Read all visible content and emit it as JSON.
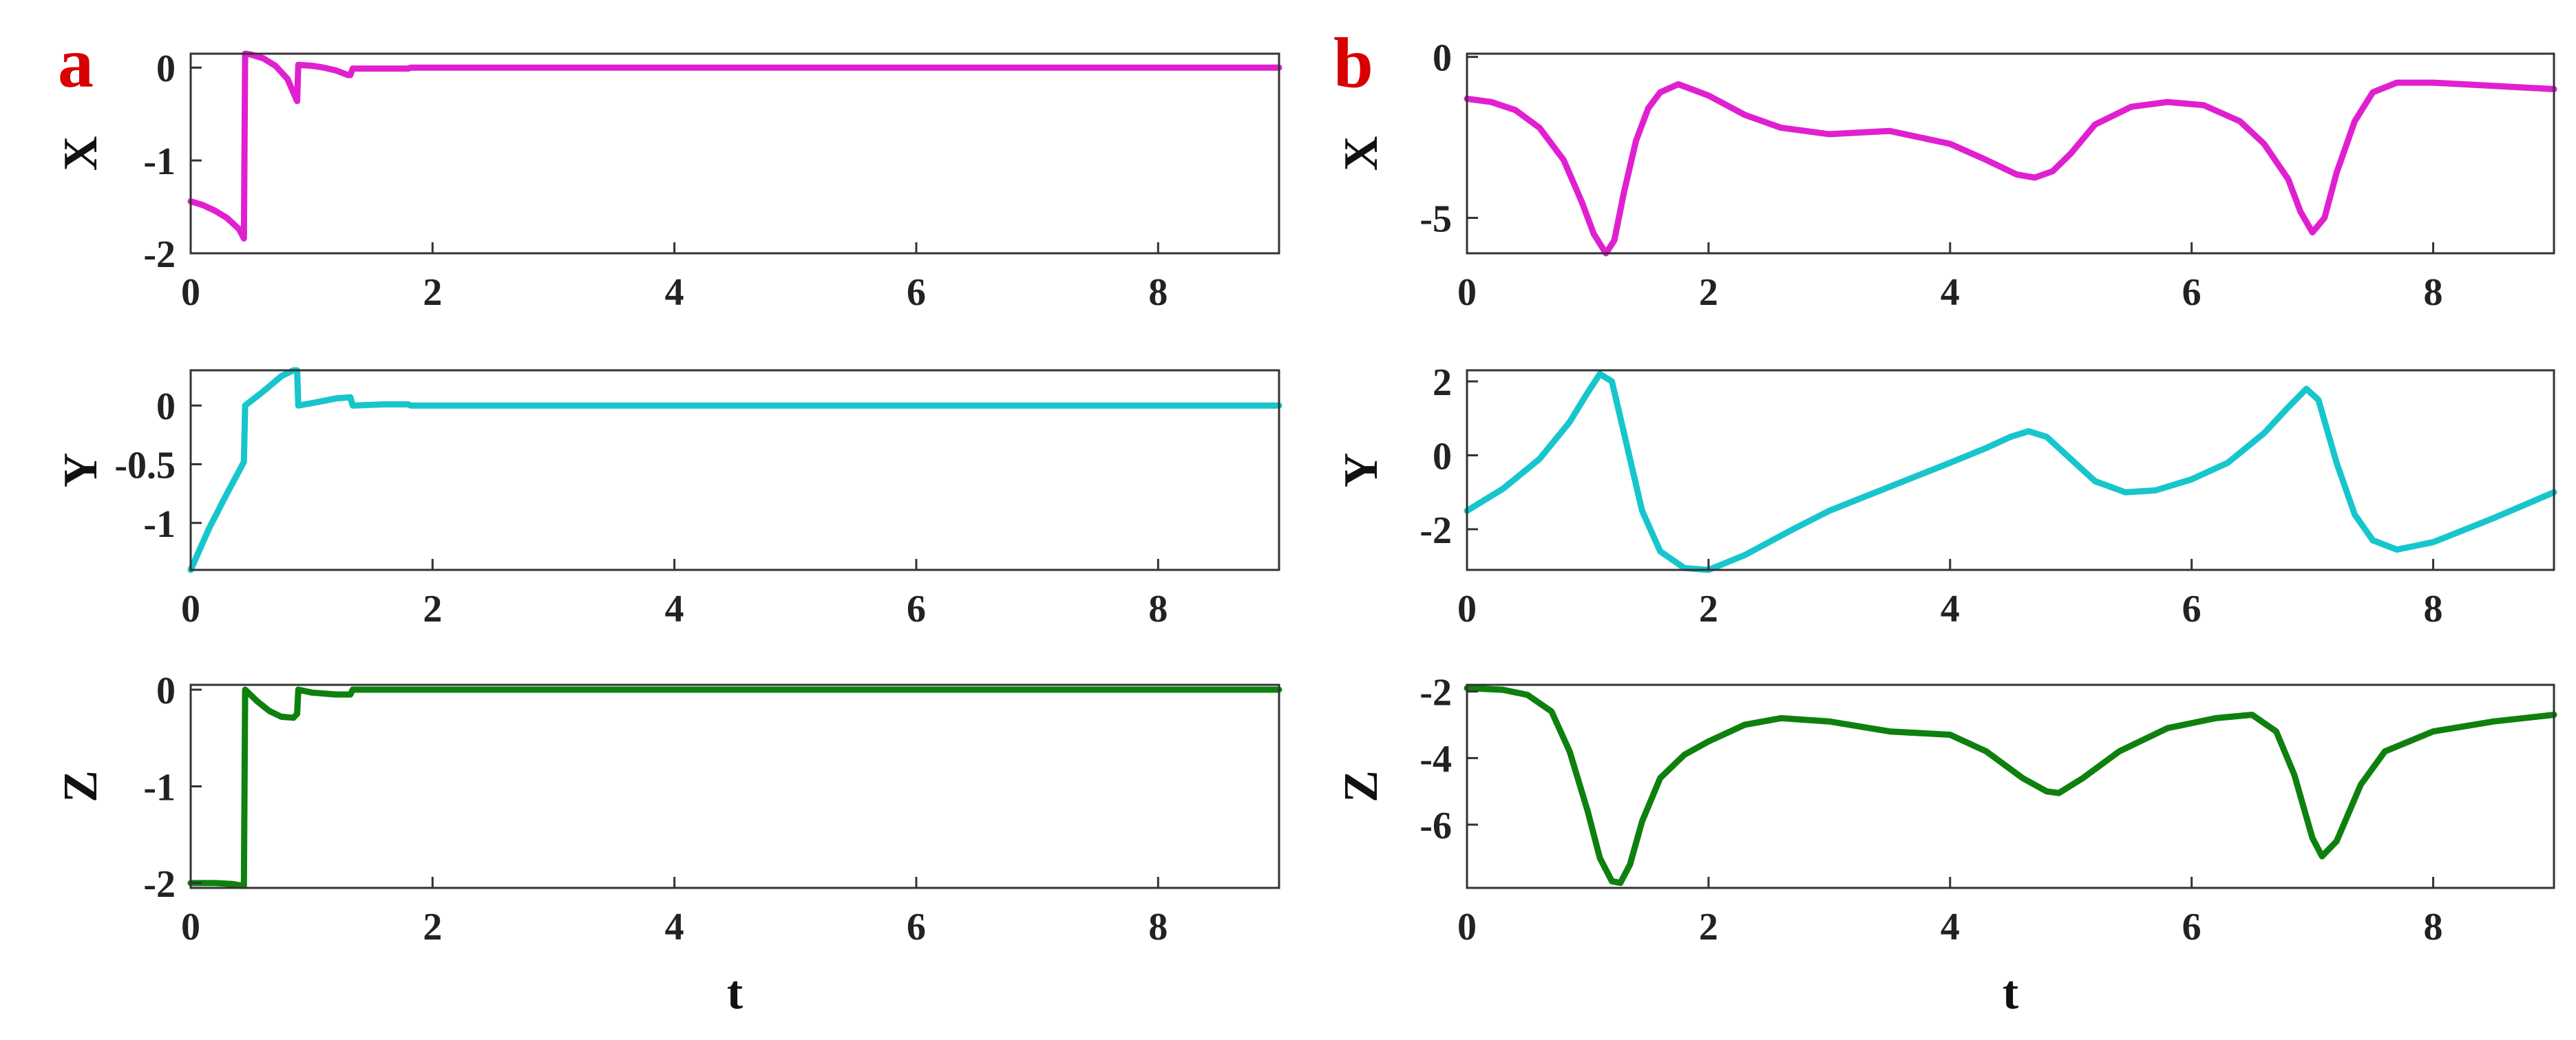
{
  "panel_labels": [
    "a",
    "b"
  ],
  "colors": {
    "panel_label": "#d80000",
    "X": "#e020d0",
    "Y": "#16c6cc",
    "Z": "#0e800e",
    "axis": "#333333"
  },
  "chart_data": [
    {
      "panel": "a",
      "type": "line",
      "ylabel": "X",
      "xlabel": "",
      "xlim": [
        0,
        9
      ],
      "ylim": [
        -2,
        0.15
      ],
      "xticks": [
        "0",
        "2",
        "4",
        "6",
        "8"
      ],
      "xtick_values": [
        0,
        2,
        4,
        6,
        8
      ],
      "yticks": [
        "0",
        "-1",
        "-2"
      ],
      "ytick_values": [
        0,
        -1,
        -2
      ],
      "series": [
        {
          "color": "#e020d0",
          "x": [
            0,
            0.1,
            0.2,
            0.3,
            0.4,
            0.44,
            0.45,
            0.5,
            0.6,
            0.7,
            0.8,
            0.88,
            0.89,
            1.0,
            1.1,
            1.2,
            1.3,
            1.32,
            1.34,
            1.5,
            1.7,
            1.8,
            1.82,
            2.0,
            3,
            4,
            5,
            6,
            7,
            8,
            9
          ],
          "y": [
            -1.44,
            -1.48,
            -1.54,
            -1.62,
            -1.74,
            -1.84,
            0.15,
            0.14,
            0.1,
            0.02,
            -0.12,
            -0.36,
            0.03,
            0.02,
            0.0,
            -0.03,
            -0.08,
            -0.08,
            -0.01,
            -0.01,
            -0.01,
            -0.01,
            0.0,
            0.0,
            0,
            0,
            0,
            0,
            0,
            0,
            0
          ]
        }
      ]
    },
    {
      "panel": "a",
      "type": "line",
      "ylabel": "Y",
      "xlabel": "",
      "xlim": [
        0,
        9
      ],
      "ylim": [
        -1.4,
        0.3
      ],
      "xticks": [
        "0",
        "2",
        "4",
        "6",
        "8"
      ],
      "xtick_values": [
        0,
        2,
        4,
        6,
        8
      ],
      "yticks": [
        "0",
        "-0.5",
        "-1"
      ],
      "ytick_values": [
        0,
        -0.5,
        -1
      ],
      "series": [
        {
          "color": "#16c6cc",
          "x": [
            0,
            0.15,
            0.3,
            0.44,
            0.45,
            0.6,
            0.75,
            0.85,
            0.88,
            0.89,
            1.0,
            1.2,
            1.32,
            1.34,
            1.6,
            1.8,
            1.82,
            2.0,
            3,
            4,
            5,
            6,
            7,
            8,
            9
          ],
          "y": [
            -1.4,
            -1.05,
            -0.75,
            -0.48,
            0.0,
            0.12,
            0.25,
            0.3,
            0.3,
            0.0,
            0.02,
            0.06,
            0.07,
            0.0,
            0.01,
            0.01,
            0.0,
            0.0,
            0,
            0,
            0,
            0,
            0,
            0,
            0
          ]
        }
      ]
    },
    {
      "panel": "a",
      "type": "line",
      "ylabel": "Z",
      "xlabel": "t",
      "xlim": [
        0,
        9
      ],
      "ylim": [
        -2.05,
        0.05
      ],
      "xticks": [
        "0",
        "2",
        "4",
        "6",
        "8"
      ],
      "xtick_values": [
        0,
        2,
        4,
        6,
        8
      ],
      "yticks": [
        "0",
        "-1",
        "-2"
      ],
      "ytick_values": [
        0,
        -1,
        -2
      ],
      "series": [
        {
          "color": "#0e800e",
          "x": [
            0,
            0.2,
            0.35,
            0.44,
            0.45,
            0.55,
            0.65,
            0.75,
            0.85,
            0.88,
            0.89,
            1.0,
            1.1,
            1.2,
            1.32,
            1.34,
            1.6,
            1.8,
            1.82,
            2,
            3,
            4,
            5,
            6,
            7,
            8,
            9
          ],
          "y": [
            -2.0,
            -2.0,
            -2.01,
            -2.03,
            0.0,
            -0.12,
            -0.22,
            -0.28,
            -0.29,
            -0.25,
            0.0,
            -0.03,
            -0.04,
            -0.05,
            -0.05,
            0.0,
            0.0,
            0.0,
            0.0,
            0,
            0,
            0,
            0,
            0,
            0,
            0,
            0
          ]
        }
      ]
    },
    {
      "panel": "b",
      "type": "line",
      "ylabel": "X",
      "xlabel": "",
      "xlim": [
        0,
        9
      ],
      "ylim": [
        -6.1,
        0.1
      ],
      "xticks": [
        "0",
        "2",
        "4",
        "6",
        "8"
      ],
      "xtick_values": [
        0,
        2,
        4,
        6,
        8
      ],
      "yticks": [
        "0",
        "-5"
      ],
      "ytick_values": [
        0,
        -5
      ],
      "series": [
        {
          "color": "#e020d0",
          "x": [
            0,
            0.2,
            0.4,
            0.6,
            0.8,
            0.95,
            1.05,
            1.15,
            1.22,
            1.3,
            1.4,
            1.5,
            1.6,
            1.75,
            2.0,
            2.3,
            2.6,
            3.0,
            3.5,
            4.0,
            4.3,
            4.55,
            4.7,
            4.85,
            5.0,
            5.2,
            5.5,
            5.8,
            6.1,
            6.4,
            6.6,
            6.8,
            6.9,
            7.0,
            7.1,
            7.2,
            7.35,
            7.5,
            7.7,
            8.0,
            8.5,
            9.0
          ],
          "y": [
            -1.3,
            -1.4,
            -1.65,
            -2.2,
            -3.2,
            -4.5,
            -5.5,
            -6.1,
            -5.7,
            -4.2,
            -2.6,
            -1.6,
            -1.1,
            -0.85,
            -1.2,
            -1.8,
            -2.2,
            -2.4,
            -2.3,
            -2.7,
            -3.2,
            -3.65,
            -3.75,
            -3.55,
            -3.0,
            -2.1,
            -1.55,
            -1.4,
            -1.5,
            -2.0,
            -2.7,
            -3.8,
            -4.8,
            -5.45,
            -5.0,
            -3.6,
            -2.0,
            -1.1,
            -0.8,
            -0.8,
            -0.9,
            -1.0
          ]
        }
      ]
    },
    {
      "panel": "b",
      "type": "line",
      "ylabel": "Y",
      "xlabel": "",
      "xlim": [
        0,
        9
      ],
      "ylim": [
        -3.1,
        2.3
      ],
      "xticks": [
        "0",
        "2",
        "4",
        "6",
        "8"
      ],
      "xtick_values": [
        0,
        2,
        4,
        6,
        8
      ],
      "yticks": [
        "2",
        "0",
        "-2"
      ],
      "ytick_values": [
        2,
        0,
        -2
      ],
      "series": [
        {
          "color": "#16c6cc",
          "x": [
            0,
            0.3,
            0.6,
            0.85,
            1.0,
            1.1,
            1.2,
            1.3,
            1.45,
            1.6,
            1.8,
            2.0,
            2.3,
            2.7,
            3.0,
            3.5,
            4.0,
            4.3,
            4.5,
            4.65,
            4.8,
            5.0,
            5.2,
            5.45,
            5.7,
            6.0,
            6.3,
            6.6,
            6.8,
            6.95,
            7.05,
            7.2,
            7.35,
            7.5,
            7.7,
            8.0,
            8.5,
            9.0
          ],
          "y": [
            -1.5,
            -0.9,
            -0.1,
            0.9,
            1.7,
            2.2,
            2.0,
            0.6,
            -1.5,
            -2.6,
            -3.05,
            -3.1,
            -2.7,
            -2.0,
            -1.5,
            -0.85,
            -0.2,
            0.2,
            0.5,
            0.65,
            0.5,
            -0.1,
            -0.7,
            -1.0,
            -0.95,
            -0.65,
            -0.2,
            0.6,
            1.3,
            1.8,
            1.5,
            -0.2,
            -1.6,
            -2.3,
            -2.55,
            -2.35,
            -1.7,
            -1.0
          ]
        }
      ]
    },
    {
      "panel": "b",
      "type": "line",
      "ylabel": "Z",
      "xlabel": "t",
      "xlim": [
        0,
        9
      ],
      "ylim": [
        -7.9,
        -1.8
      ],
      "xticks": [
        "0",
        "2",
        "4",
        "6",
        "8"
      ],
      "xtick_values": [
        0,
        2,
        4,
        6,
        8
      ],
      "yticks": [
        "-2",
        "-4",
        "-6"
      ],
      "ytick_values": [
        -2,
        -4,
        -6
      ],
      "series": [
        {
          "color": "#0e800e",
          "x": [
            0,
            0.3,
            0.5,
            0.7,
            0.85,
            1.0,
            1.1,
            1.2,
            1.27,
            1.35,
            1.45,
            1.6,
            1.8,
            2.0,
            2.3,
            2.6,
            3.0,
            3.5,
            4.0,
            4.3,
            4.6,
            4.8,
            4.9,
            5.1,
            5.4,
            5.8,
            6.2,
            6.5,
            6.7,
            6.85,
            7.0,
            7.08,
            7.2,
            7.4,
            7.6,
            8.0,
            8.5,
            9.0
          ],
          "y": [
            -1.9,
            -1.95,
            -2.1,
            -2.6,
            -3.8,
            -5.6,
            -7.0,
            -7.7,
            -7.75,
            -7.2,
            -5.9,
            -4.6,
            -3.9,
            -3.5,
            -3.0,
            -2.8,
            -2.9,
            -3.2,
            -3.3,
            -3.8,
            -4.6,
            -5.0,
            -5.05,
            -4.6,
            -3.8,
            -3.1,
            -2.8,
            -2.7,
            -3.2,
            -4.5,
            -6.4,
            -6.95,
            -6.5,
            -4.8,
            -3.8,
            -3.2,
            -2.9,
            -2.7
          ]
        }
      ]
    }
  ]
}
